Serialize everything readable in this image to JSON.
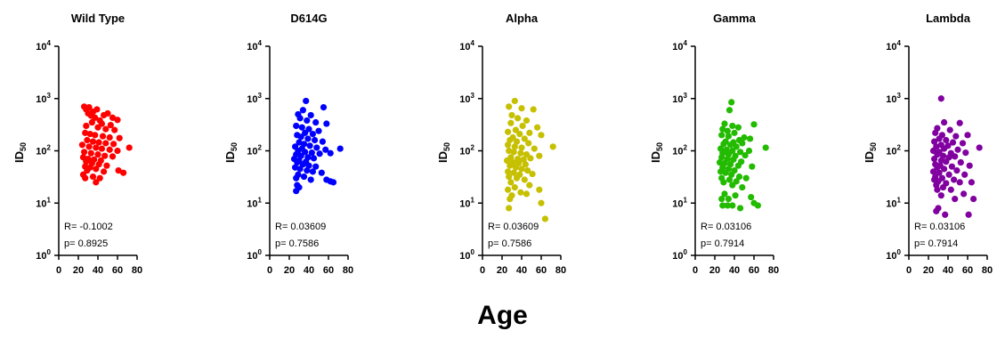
{
  "figure": {
    "xlabel": "Age",
    "ylabel_main": "ID",
    "ylabel_sub": "50"
  },
  "chart_data": [
    {
      "type": "scatter",
      "title": "Wild Type",
      "color": "#ff0000",
      "xlim": [
        0,
        80
      ],
      "ylim": [
        1,
        10000
      ],
      "yscale": "log",
      "xticks": [
        0,
        20,
        40,
        60,
        80
      ],
      "ytick_base": "10",
      "ytick_exponents": [
        "0",
        "1",
        "2",
        "3",
        "4"
      ],
      "stats": {
        "r": "R= -0.1002",
        "p": "p= 0.8925"
      },
      "points": [
        [
          26,
          700
        ],
        [
          28,
          620
        ],
        [
          31,
          680
        ],
        [
          35,
          560
        ],
        [
          39,
          620
        ],
        [
          30,
          520
        ],
        [
          33,
          470
        ],
        [
          37,
          430
        ],
        [
          42,
          380
        ],
        [
          46,
          480
        ],
        [
          50,
          520
        ],
        [
          55,
          430
        ],
        [
          60,
          390
        ],
        [
          34,
          350
        ],
        [
          44,
          330
        ],
        [
          53,
          310
        ],
        [
          28,
          300
        ],
        [
          40,
          280
        ],
        [
          48,
          260
        ],
        [
          57,
          250
        ],
        [
          27,
          220
        ],
        [
          32,
          210
        ],
        [
          37,
          200
        ],
        [
          45,
          190
        ],
        [
          52,
          180
        ],
        [
          62,
          175
        ],
        [
          29,
          160
        ],
        [
          35,
          150
        ],
        [
          41,
          145
        ],
        [
          48,
          140
        ],
        [
          56,
          135
        ],
        [
          24,
          130
        ],
        [
          31,
          120
        ],
        [
          38,
          115
        ],
        [
          44,
          110
        ],
        [
          52,
          105
        ],
        [
          60,
          100
        ],
        [
          72,
          115
        ],
        [
          26,
          95
        ],
        [
          33,
          90
        ],
        [
          40,
          85
        ],
        [
          47,
          80
        ],
        [
          55,
          78
        ],
        [
          25,
          75
        ],
        [
          30,
          70
        ],
        [
          36,
          68
        ],
        [
          43,
          65
        ],
        [
          28,
          62
        ],
        [
          34,
          58
        ],
        [
          41,
          55
        ],
        [
          49,
          52
        ],
        [
          27,
          50
        ],
        [
          32,
          48
        ],
        [
          38,
          45
        ],
        [
          29,
          42
        ],
        [
          46,
          40
        ],
        [
          61,
          42
        ],
        [
          66,
          38
        ],
        [
          25,
          35
        ],
        [
          35,
          32
        ],
        [
          27,
          30
        ],
        [
          42,
          30
        ],
        [
          38,
          25
        ]
      ]
    },
    {
      "type": "scatter",
      "title": "D614G",
      "color": "#0000ff",
      "xlim": [
        0,
        80
      ],
      "ylim": [
        1,
        10000
      ],
      "yscale": "log",
      "xticks": [
        0,
        20,
        40,
        60,
        80
      ],
      "ytick_base": "10",
      "ytick_exponents": [
        "0",
        "1",
        "2",
        "3",
        "4"
      ],
      "stats": {
        "r": "R= 0.03609",
        "p": "p= 0.7586"
      },
      "points": [
        [
          37,
          900
        ],
        [
          34,
          600
        ],
        [
          55,
          680
        ],
        [
          29,
          500
        ],
        [
          42,
          480
        ],
        [
          31,
          420
        ],
        [
          38,
          380
        ],
        [
          47,
          350
        ],
        [
          58,
          330
        ],
        [
          27,
          300
        ],
        [
          33,
          280
        ],
        [
          40,
          260
        ],
        [
          50,
          240
        ],
        [
          36,
          220
        ],
        [
          44,
          210
        ],
        [
          28,
          200
        ],
        [
          32,
          185
        ],
        [
          39,
          170
        ],
        [
          46,
          160
        ],
        [
          54,
          150
        ],
        [
          30,
          145
        ],
        [
          35,
          135
        ],
        [
          41,
          125
        ],
        [
          26,
          120
        ],
        [
          33,
          110
        ],
        [
          48,
          115
        ],
        [
          57,
          105
        ],
        [
          72,
          110
        ],
        [
          29,
          100
        ],
        [
          36,
          95
        ],
        [
          43,
          92
        ],
        [
          51,
          88
        ],
        [
          62,
          90
        ],
        [
          27,
          85
        ],
        [
          32,
          80
        ],
        [
          39,
          75
        ],
        [
          45,
          72
        ],
        [
          25,
          70
        ],
        [
          30,
          65
        ],
        [
          37,
          62
        ],
        [
          28,
          60
        ],
        [
          34,
          55
        ],
        [
          40,
          52
        ],
        [
          47,
          50
        ],
        [
          26,
          48
        ],
        [
          31,
          45
        ],
        [
          38,
          42
        ],
        [
          44,
          40
        ],
        [
          53,
          38
        ],
        [
          29,
          35
        ],
        [
          35,
          32
        ],
        [
          27,
          30
        ],
        [
          58,
          28
        ],
        [
          62,
          26
        ],
        [
          65,
          25
        ],
        [
          42,
          28
        ],
        [
          28,
          22
        ],
        [
          30,
          20
        ],
        [
          27,
          17
        ]
      ]
    },
    {
      "type": "scatter",
      "title": "Alpha",
      "color": "#c6c000",
      "xlim": [
        0,
        80
      ],
      "ylim": [
        1,
        10000
      ],
      "yscale": "log",
      "xticks": [
        0,
        20,
        40,
        60,
        80
      ],
      "ytick_base": "10",
      "ytick_exponents": [
        "0",
        "1",
        "2",
        "3",
        "4"
      ],
      "stats": {
        "r": "R= 0.03609",
        "p": "p= 0.7586"
      },
      "points": [
        [
          33,
          900
        ],
        [
          27,
          700
        ],
        [
          40,
          650
        ],
        [
          52,
          620
        ],
        [
          30,
          480
        ],
        [
          36,
          420
        ],
        [
          45,
          380
        ],
        [
          29,
          340
        ],
        [
          41,
          300
        ],
        [
          56,
          280
        ],
        [
          34,
          250
        ],
        [
          26,
          230
        ],
        [
          38,
          210
        ],
        [
          48,
          220
        ],
        [
          60,
          200
        ],
        [
          31,
          180
        ],
        [
          43,
          170
        ],
        [
          28,
          160
        ],
        [
          35,
          150
        ],
        [
          47,
          140
        ],
        [
          26,
          130
        ],
        [
          33,
          120
        ],
        [
          40,
          115
        ],
        [
          53,
          110
        ],
        [
          72,
          120
        ],
        [
          27,
          100
        ],
        [
          32,
          95
        ],
        [
          39,
          90
        ],
        [
          45,
          85
        ],
        [
          58,
          80
        ],
        [
          29,
          75
        ],
        [
          36,
          70
        ],
        [
          42,
          68
        ],
        [
          49,
          72
        ],
        [
          25,
          65
        ],
        [
          31,
          60
        ],
        [
          37,
          58
        ],
        [
          44,
          55
        ],
        [
          28,
          52
        ],
        [
          34,
          48
        ],
        [
          40,
          45
        ],
        [
          46,
          42
        ],
        [
          26,
          40
        ],
        [
          32,
          38
        ],
        [
          38,
          35
        ],
        [
          51,
          36
        ],
        [
          27,
          32
        ],
        [
          35,
          30
        ],
        [
          43,
          28
        ],
        [
          29,
          25
        ],
        [
          48,
          22
        ],
        [
          33,
          20
        ],
        [
          26,
          18
        ],
        [
          39,
          16
        ],
        [
          58,
          18
        ],
        [
          30,
          14
        ],
        [
          45,
          15
        ],
        [
          28,
          12
        ],
        [
          60,
          10
        ],
        [
          27,
          8
        ],
        [
          64,
          5
        ]
      ]
    },
    {
      "type": "scatter",
      "title": "Gamma",
      "color": "#22bb00",
      "xlim": [
        0,
        80
      ],
      "ylim": [
        1,
        10000
      ],
      "yscale": "log",
      "xticks": [
        0,
        20,
        40,
        60,
        80
      ],
      "ytick_base": "10",
      "ytick_exponents": [
        "0",
        "1",
        "2",
        "3",
        "4"
      ],
      "stats": {
        "r": "R= 0.03106",
        "p": "p= 0.7914"
      },
      "points": [
        [
          37,
          850
        ],
        [
          35,
          600
        ],
        [
          30,
          330
        ],
        [
          38,
          300
        ],
        [
          44,
          280
        ],
        [
          60,
          320
        ],
        [
          28,
          260
        ],
        [
          33,
          240
        ],
        [
          40,
          220
        ],
        [
          50,
          180
        ],
        [
          27,
          200
        ],
        [
          34,
          190
        ],
        [
          45,
          160
        ],
        [
          56,
          170
        ],
        [
          31,
          150
        ],
        [
          39,
          145
        ],
        [
          48,
          140
        ],
        [
          29,
          135
        ],
        [
          36,
          130
        ],
        [
          42,
          120
        ],
        [
          72,
          115
        ],
        [
          26,
          110
        ],
        [
          32,
          105
        ],
        [
          38,
          100
        ],
        [
          46,
          95
        ],
        [
          55,
          100
        ],
        [
          28,
          90
        ],
        [
          34,
          85
        ],
        [
          41,
          80
        ],
        [
          51,
          82
        ],
        [
          27,
          75
        ],
        [
          33,
          70
        ],
        [
          39,
          68
        ],
        [
          47,
          62
        ],
        [
          25,
          60
        ],
        [
          30,
          58
        ],
        [
          36,
          55
        ],
        [
          44,
          52
        ],
        [
          58,
          50
        ],
        [
          28,
          48
        ],
        [
          34,
          45
        ],
        [
          40,
          42
        ],
        [
          26,
          40
        ],
        [
          31,
          38
        ],
        [
          37,
          35
        ],
        [
          45,
          32
        ],
        [
          52,
          30
        ],
        [
          27,
          30
        ],
        [
          35,
          28
        ],
        [
          42,
          26
        ],
        [
          29,
          25
        ],
        [
          38,
          22
        ],
        [
          48,
          20
        ],
        [
          30,
          15
        ],
        [
          41,
          14
        ],
        [
          57,
          13
        ],
        [
          27,
          12
        ],
        [
          34,
          12
        ],
        [
          60,
          10
        ],
        [
          28,
          9
        ],
        [
          33,
          9
        ],
        [
          38,
          9
        ],
        [
          46,
          8
        ],
        [
          64,
          9
        ]
      ]
    },
    {
      "type": "scatter",
      "title": "Lambda",
      "color": "#8000a0",
      "xlim": [
        0,
        80
      ],
      "ylim": [
        1,
        10000
      ],
      "yscale": "log",
      "xticks": [
        0,
        20,
        40,
        60,
        80
      ],
      "ytick_base": "10",
      "ytick_exponents": [
        "0",
        "1",
        "2",
        "3",
        "4"
      ],
      "stats": {
        "r": "R= 0.03106",
        "p": "p= 0.7914"
      },
      "points": [
        [
          33,
          1000
        ],
        [
          36,
          350
        ],
        [
          52,
          340
        ],
        [
          29,
          270
        ],
        [
          42,
          250
        ],
        [
          27,
          220
        ],
        [
          34,
          200
        ],
        [
          48,
          190
        ],
        [
          60,
          200
        ],
        [
          31,
          170
        ],
        [
          38,
          160
        ],
        [
          26,
          150
        ],
        [
          45,
          145
        ],
        [
          55,
          140
        ],
        [
          33,
          130
        ],
        [
          40,
          125
        ],
        [
          28,
          120
        ],
        [
          72,
          115
        ],
        [
          36,
          110
        ],
        [
          50,
          105
        ],
        [
          25,
          100
        ],
        [
          31,
          95
        ],
        [
          43,
          90
        ],
        [
          58,
          92
        ],
        [
          29,
          85
        ],
        [
          35,
          80
        ],
        [
          41,
          75
        ],
        [
          47,
          78
        ],
        [
          26,
          70
        ],
        [
          33,
          65
        ],
        [
          38,
          62
        ],
        [
          53,
          60
        ],
        [
          27,
          55
        ],
        [
          32,
          52
        ],
        [
          44,
          50
        ],
        [
          62,
          52
        ],
        [
          29,
          48
        ],
        [
          36,
          45
        ],
        [
          49,
          42
        ],
        [
          25,
          40
        ],
        [
          31,
          38
        ],
        [
          41,
          35
        ],
        [
          57,
          35
        ],
        [
          27,
          32
        ],
        [
          34,
          30
        ],
        [
          46,
          28
        ],
        [
          26,
          28
        ],
        [
          30,
          26
        ],
        [
          38,
          24
        ],
        [
          52,
          25
        ],
        [
          64,
          25
        ],
        [
          28,
          22
        ],
        [
          35,
          20
        ],
        [
          43,
          18
        ],
        [
          29,
          18
        ],
        [
          56,
          15
        ],
        [
          33,
          14
        ],
        [
          47,
          12
        ],
        [
          66,
          12
        ],
        [
          30,
          8
        ],
        [
          28,
          7
        ],
        [
          37,
          6
        ],
        [
          61,
          6
        ]
      ]
    }
  ]
}
